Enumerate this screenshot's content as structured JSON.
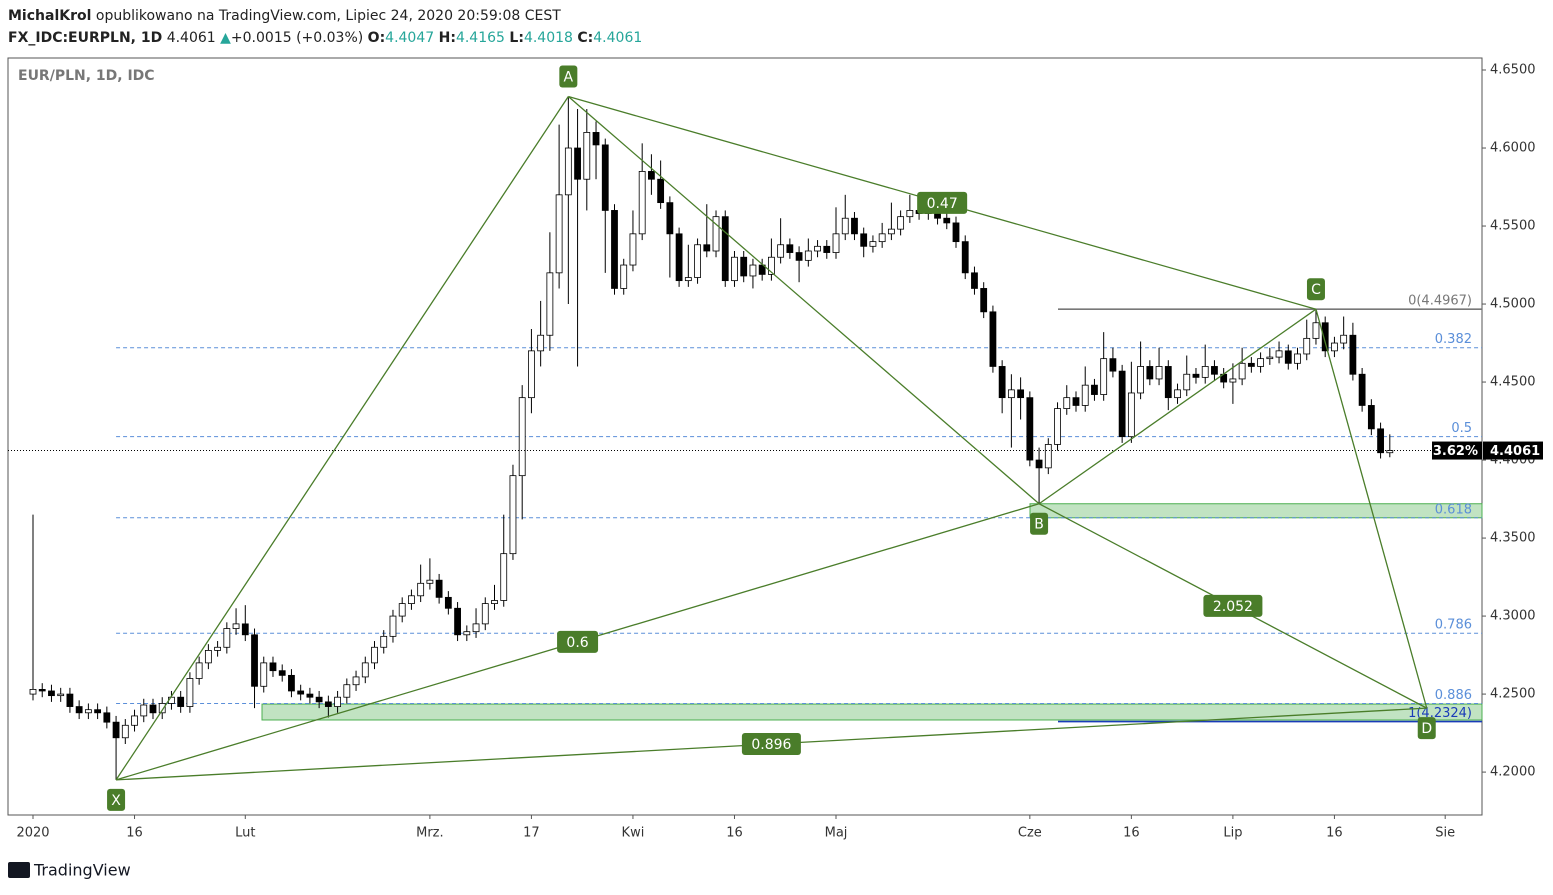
{
  "header": {
    "author": "MichalKrol",
    "published": "opublikowano na TradingView.com, Lipiec 24, 2020 20:59:08 CEST",
    "symbol": "FX_IDC:EURPLN, 1D",
    "change": "+0.0015 (+0.03%)",
    "o_label": "O:",
    "h_label": "H:",
    "l_label": "L:",
    "c_label": "C:"
  },
  "legend_title": "EUR/PLN, 1D, IDC",
  "footer": "TradingView",
  "chart_data": {
    "type": "candlestick",
    "up_color": "#ffffff",
    "down_color": "#000000",
    "pattern_color": "#4a7d2a",
    "zone_color": "#4caf50",
    "categories": [
      "2020",
      null,
      null,
      null,
      null,
      null,
      null,
      null,
      null,
      null,
      null,
      "16",
      null,
      null,
      null,
      null,
      null,
      null,
      null,
      null,
      null,
      null,
      null,
      "Lut",
      null,
      null,
      null,
      null,
      null,
      null,
      null,
      null,
      null,
      null,
      null,
      null,
      null,
      null,
      null,
      null,
      null,
      null,
      null,
      "Mrz.",
      null,
      null,
      null,
      null,
      null,
      null,
      null,
      null,
      null,
      null,
      "17",
      null,
      null,
      null,
      null,
      null,
      null,
      null,
      null,
      null,
      null,
      "Kwi",
      null,
      null,
      null,
      null,
      null,
      null,
      null,
      null,
      null,
      null,
      "16",
      null,
      null,
      null,
      null,
      null,
      null,
      null,
      null,
      null,
      null,
      "Maj",
      null,
      null,
      null,
      null,
      null,
      null,
      null,
      null,
      null,
      null,
      null,
      null,
      null,
      null,
      null,
      null,
      null,
      null,
      null,
      null,
      "Cze",
      null,
      null,
      null,
      null,
      null,
      null,
      null,
      null,
      null,
      null,
      "16",
      null,
      null,
      null,
      null,
      null,
      null,
      null,
      null,
      null,
      null,
      "Lip",
      null,
      null,
      null,
      null,
      null,
      null,
      null,
      null,
      null,
      null,
      "16",
      null,
      null,
      null,
      null,
      null,
      null,
      null,
      null,
      null,
      null,
      null,
      "Sie"
    ],
    "open": [
      4.25,
      4.253,
      4.252,
      4.249,
      4.25,
      4.242,
      4.238,
      4.24,
      4.238,
      4.232,
      4.222,
      4.23,
      4.236,
      4.243,
      4.238,
      4.244,
      4.248,
      4.242,
      4.26,
      4.27,
      4.278,
      4.28,
      4.292,
      4.295,
      4.288,
      4.255,
      4.27,
      4.265,
      4.262,
      4.252,
      4.25,
      4.248,
      4.245,
      4.242,
      4.248,
      4.256,
      4.261,
      4.27,
      4.28,
      4.287,
      4.3,
      4.308,
      4.313,
      4.321,
      4.323,
      4.312,
      4.305,
      4.288,
      4.29,
      4.295,
      4.308,
      4.31,
      4.34,
      4.39,
      4.44,
      4.47,
      4.48,
      4.52,
      4.57,
      4.6,
      4.58,
      4.61,
      4.602,
      4.56,
      4.51,
      4.525,
      4.545,
      4.585,
      4.58,
      4.565,
      4.545,
      4.515,
      4.517,
      4.538,
      4.534,
      4.556,
      4.515,
      4.53,
      4.518,
      4.525,
      4.519,
      4.53,
      4.538,
      4.533,
      4.528,
      4.534,
      4.537,
      4.533,
      4.545,
      4.555,
      4.545,
      4.537,
      4.54,
      4.545,
      4.548,
      4.556,
      4.56,
      4.558,
      4.56,
      4.555,
      4.552,
      4.54,
      4.52,
      4.51,
      4.495,
      4.46,
      4.44,
      4.445,
      4.44,
      4.4,
      4.395,
      4.41,
      4.433,
      4.44,
      4.435,
      4.448,
      4.442,
      4.465,
      4.457,
      4.415,
      4.443,
      4.46,
      4.452,
      4.46,
      4.44,
      4.445,
      4.455,
      4.453,
      4.46,
      4.455,
      4.45,
      4.452,
      4.462,
      4.46,
      4.465,
      4.466,
      4.47,
      4.462,
      4.468,
      4.478,
      4.488,
      4.47,
      4.475,
      4.48,
      4.455,
      4.435,
      4.42,
      4.4047,
      null,
      null,
      null,
      null,
      null,
      null
    ],
    "high": [
      4.365,
      4.257,
      4.256,
      4.254,
      4.254,
      4.246,
      4.244,
      4.244,
      4.242,
      4.236,
      4.234,
      4.24,
      4.247,
      4.247,
      4.248,
      4.252,
      4.252,
      4.264,
      4.274,
      4.282,
      4.284,
      4.296,
      4.305,
      4.307,
      4.292,
      4.274,
      4.274,
      4.269,
      4.266,
      4.256,
      4.254,
      4.252,
      4.249,
      4.252,
      4.26,
      4.265,
      4.274,
      4.284,
      4.291,
      4.304,
      4.312,
      4.317,
      4.333,
      4.337,
      4.327,
      4.316,
      4.309,
      4.294,
      4.305,
      4.312,
      4.32,
      4.365,
      4.397,
      4.448,
      4.484,
      4.502,
      4.546,
      4.615,
      4.633,
      4.625,
      4.625,
      4.617,
      4.606,
      4.564,
      4.529,
      4.56,
      4.603,
      4.596,
      4.592,
      4.569,
      4.549,
      4.538,
      4.542,
      4.564,
      4.56,
      4.56,
      4.534,
      4.534,
      4.529,
      4.529,
      4.542,
      4.555,
      4.542,
      4.537,
      4.542,
      4.541,
      4.541,
      4.562,
      4.57,
      4.559,
      4.549,
      4.544,
      4.552,
      4.565,
      4.56,
      4.57,
      4.564,
      4.564,
      4.564,
      4.559,
      4.556,
      4.544,
      4.524,
      4.514,
      4.499,
      4.464,
      4.455,
      4.453,
      4.444,
      4.408,
      4.414,
      4.437,
      4.448,
      4.444,
      4.46,
      4.452,
      4.482,
      4.472,
      4.461,
      4.463,
      4.476,
      4.464,
      4.472,
      4.464,
      4.449,
      4.467,
      4.459,
      4.474,
      4.464,
      4.459,
      4.462,
      4.472,
      4.466,
      4.469,
      4.472,
      4.476,
      4.474,
      4.472,
      4.49,
      4.4967,
      4.492,
      4.479,
      4.492,
      4.488,
      4.459,
      4.439,
      4.424,
      4.4165,
      null,
      null,
      null,
      null,
      null,
      null
    ],
    "low": [
      4.246,
      4.248,
      4.245,
      4.245,
      4.238,
      4.234,
      4.234,
      4.234,
      4.228,
      4.195,
      4.218,
      4.226,
      4.232,
      4.234,
      4.234,
      4.24,
      4.238,
      4.238,
      4.256,
      4.266,
      4.274,
      4.276,
      4.288,
      4.284,
      4.241,
      4.251,
      4.261,
      4.258,
      4.248,
      4.246,
      4.244,
      4.241,
      4.235,
      4.238,
      4.244,
      4.252,
      4.257,
      4.266,
      4.276,
      4.283,
      4.296,
      4.304,
      4.309,
      4.317,
      4.308,
      4.301,
      4.284,
      4.284,
      4.286,
      4.291,
      4.304,
      4.306,
      4.336,
      4.362,
      4.43,
      4.46,
      4.47,
      4.51,
      4.5,
      4.46,
      4.56,
      4.58,
      4.52,
      4.506,
      4.506,
      4.521,
      4.541,
      4.57,
      4.561,
      4.517,
      4.511,
      4.511,
      4.513,
      4.53,
      4.53,
      4.511,
      4.511,
      4.514,
      4.51,
      4.515,
      4.515,
      4.526,
      4.529,
      4.514,
      4.524,
      4.53,
      4.529,
      4.529,
      4.541,
      4.541,
      4.53,
      4.533,
      4.536,
      4.541,
      4.544,
      4.552,
      4.554,
      4.554,
      4.551,
      4.548,
      4.536,
      4.516,
      4.506,
      4.491,
      4.456,
      4.43,
      4.408,
      4.426,
      4.396,
      4.372,
      4.391,
      4.406,
      4.429,
      4.431,
      4.431,
      4.438,
      4.438,
      4.453,
      4.411,
      4.411,
      4.439,
      4.448,
      4.448,
      4.432,
      4.436,
      4.441,
      4.449,
      4.449,
      4.451,
      4.446,
      4.436,
      4.448,
      4.456,
      4.456,
      4.461,
      4.462,
      4.458,
      4.458,
      4.464,
      4.474,
      4.466,
      4.466,
      4.471,
      4.451,
      4.431,
      4.416,
      4.401,
      4.4018,
      null,
      null,
      null,
      null,
      null,
      null
    ],
    "close": [
      4.253,
      4.252,
      4.249,
      4.25,
      4.242,
      4.238,
      4.24,
      4.238,
      4.232,
      4.222,
      4.23,
      4.236,
      4.243,
      4.238,
      4.244,
      4.248,
      4.242,
      4.26,
      4.27,
      4.278,
      4.28,
      4.292,
      4.295,
      4.288,
      4.255,
      4.27,
      4.265,
      4.262,
      4.252,
      4.25,
      4.248,
      4.245,
      4.242,
      4.248,
      4.256,
      4.261,
      4.27,
      4.28,
      4.287,
      4.3,
      4.308,
      4.313,
      4.321,
      4.323,
      4.312,
      4.305,
      4.288,
      4.29,
      4.295,
      4.308,
      4.31,
      4.34,
      4.39,
      4.44,
      4.47,
      4.48,
      4.52,
      4.57,
      4.6,
      4.58,
      4.61,
      4.602,
      4.56,
      4.51,
      4.525,
      4.545,
      4.585,
      4.58,
      4.565,
      4.545,
      4.515,
      4.517,
      4.538,
      4.534,
      4.556,
      4.515,
      4.53,
      4.518,
      4.525,
      4.519,
      4.53,
      4.538,
      4.533,
      4.528,
      4.534,
      4.537,
      4.533,
      4.545,
      4.555,
      4.545,
      4.537,
      4.54,
      4.545,
      4.548,
      4.556,
      4.56,
      4.558,
      4.56,
      4.555,
      4.552,
      4.54,
      4.52,
      4.51,
      4.495,
      4.46,
      4.44,
      4.445,
      4.44,
      4.4,
      4.395,
      4.41,
      4.433,
      4.44,
      4.435,
      4.448,
      4.442,
      4.465,
      4.457,
      4.415,
      4.443,
      4.46,
      4.452,
      4.46,
      4.44,
      4.445,
      4.455,
      4.453,
      4.46,
      4.455,
      4.45,
      4.452,
      4.462,
      4.46,
      4.465,
      4.466,
      4.47,
      4.462,
      4.468,
      4.478,
      4.488,
      4.47,
      4.475,
      4.48,
      4.455,
      4.435,
      4.42,
      4.4047,
      4.4061,
      null,
      null,
      null,
      null,
      null,
      null
    ],
    "ylim": [
      4.1725,
      4.6577
    ],
    "yticks": [
      {
        "value": 4.2,
        "label": "4.2000"
      },
      {
        "value": 4.25,
        "label": "4.2500"
      },
      {
        "value": 4.3,
        "label": "4.3000"
      },
      {
        "value": 4.35,
        "label": "4.3500"
      },
      {
        "value": 4.4,
        "label": "4.4000"
      },
      {
        "value": 4.45,
        "label": "4.4500"
      },
      {
        "value": 4.5,
        "label": "4.5000"
      },
      {
        "value": 4.55,
        "label": "4.5500"
      },
      {
        "value": 4.6,
        "label": "4.6000"
      },
      {
        "value": 4.65,
        "label": "4.6500"
      }
    ],
    "last_change": "3.62%",
    "pattern": {
      "points": [
        {
          "label": "X",
          "index": 9,
          "price": 4.195
        },
        {
          "label": "A",
          "index": 58,
          "price": 4.633
        },
        {
          "label": "B",
          "index": 109,
          "price": 4.372
        },
        {
          "label": "C",
          "index": 139,
          "price": 4.4967
        },
        {
          "label": "D",
          "index": 151,
          "price": 4.241
        }
      ],
      "legs": [
        {
          "from": "X",
          "to": "A"
        },
        {
          "from": "A",
          "to": "B"
        },
        {
          "from": "B",
          "to": "C"
        },
        {
          "from": "C",
          "to": "D"
        },
        {
          "from": "X",
          "to": "B",
          "ratio": 0.6
        },
        {
          "from": "A",
          "to": "C",
          "ratio": 0.47
        },
        {
          "from": "B",
          "to": "D",
          "ratio": 2.052
        },
        {
          "from": "X",
          "to": "D",
          "ratio": 0.896
        }
      ]
    },
    "fib_levels": [
      {
        "label": "0(4.4967)",
        "price": 4.4967,
        "color": "#787878"
      },
      {
        "ratio": 0.382,
        "price": 4.472,
        "color": "#5b8fd9"
      },
      {
        "ratio": 0.5,
        "price": 4.415,
        "color": "#5b8fd9"
      },
      {
        "ratio": 0.618,
        "price": 4.363,
        "color": "#5b8fd9"
      },
      {
        "ratio": 0.786,
        "price": 4.289,
        "color": "#5b8fd9"
      },
      {
        "ratio": 0.886,
        "price": 4.244,
        "color": "#5b8fd9"
      },
      {
        "label": "1(4.2324)",
        "price": 4.2324,
        "color": "#1a3bb8"
      }
    ],
    "zones": [
      {
        "low": 4.2334,
        "high": 4.2436
      },
      {
        "low": 4.363,
        "high": 4.372
      }
    ]
  }
}
